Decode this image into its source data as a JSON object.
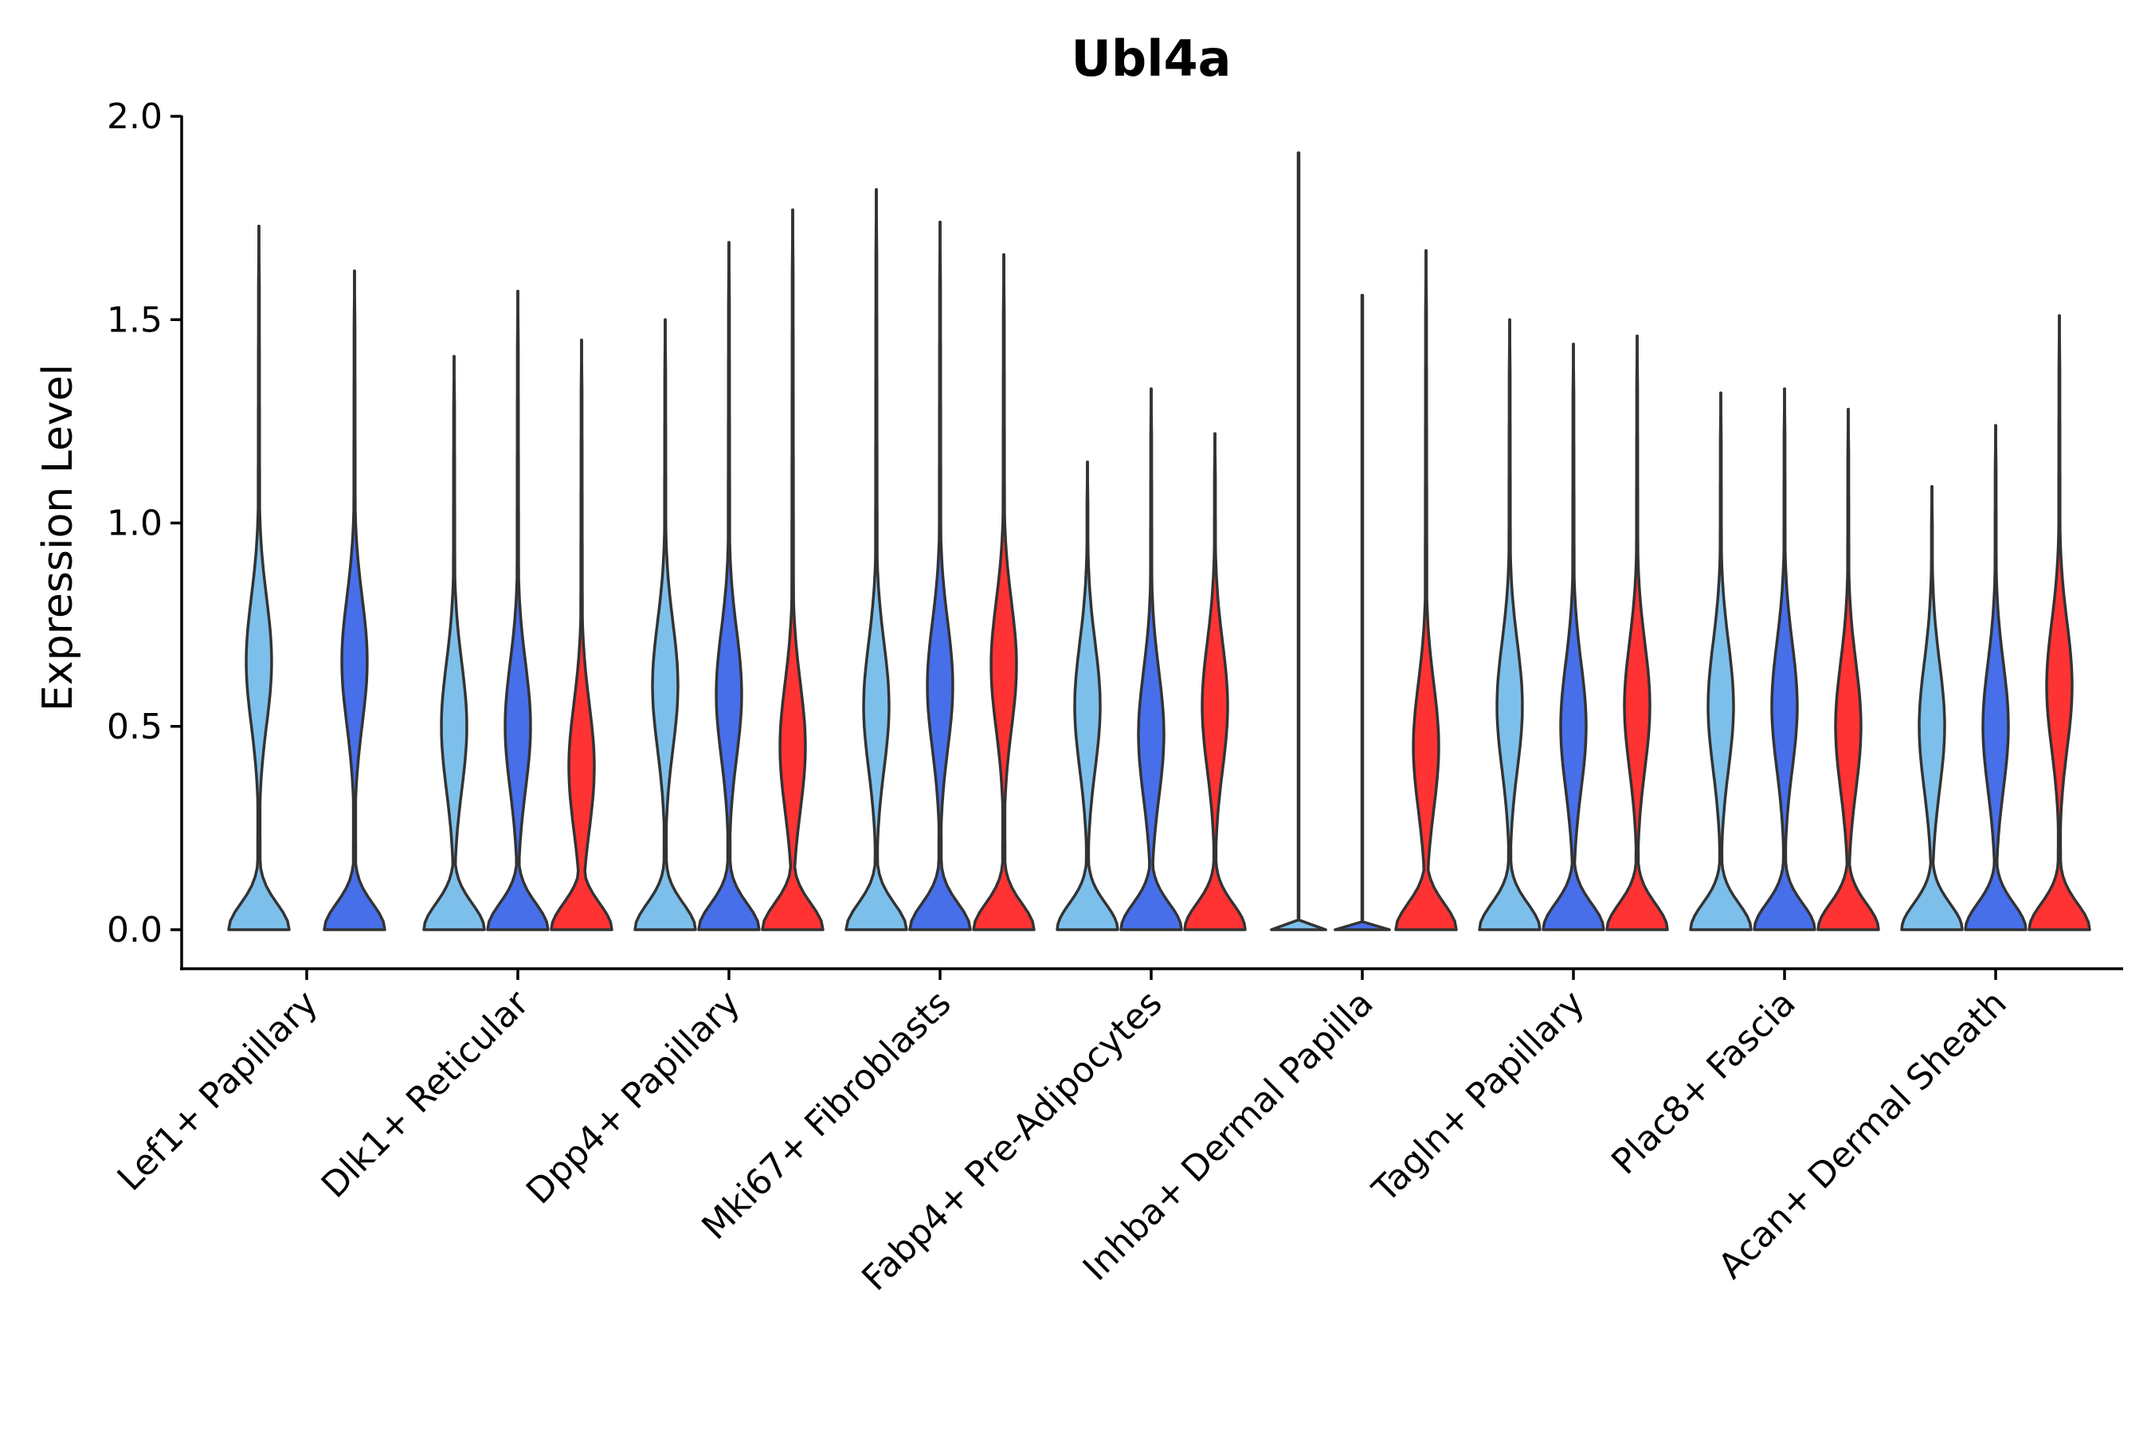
{
  "chart_data": {
    "type": "violin",
    "title": "Ubl4a",
    "ylabel": "Expression Level",
    "xlabel": "",
    "ylim": [
      -0.1,
      2.0
    ],
    "yticks": [
      "0.0",
      "0.5",
      "1.0",
      "1.5",
      "2.0"
    ],
    "ytick_values": [
      0.0,
      0.5,
      1.0,
      1.5,
      2.0
    ],
    "colors": {
      "light_blue": "#7DBFEB",
      "blue": "#476FEA",
      "red": "#FF3333",
      "outline": "#333333"
    },
    "categories": [
      "Lef1+ Papillary",
      "Dlk1+ Reticular",
      "Dpp4+ Papillary",
      "Mki67+ Fibroblasts",
      "Fabp4+ Pre-Adipocytes",
      "Inhba+ Dermal Papilla",
      "Tagln+ Papillary",
      "Plac8+ Fascia",
      "Acan+ Dermal Sheath"
    ],
    "groups": [
      {
        "category": "Lef1+ Papillary",
        "violins": [
          {
            "color": "light_blue",
            "max": 1.73,
            "mode": 0.66
          },
          {
            "color": "blue",
            "max": 1.62,
            "mode": 0.66
          }
        ]
      },
      {
        "category": "Dlk1+ Reticular",
        "violins": [
          {
            "color": "light_blue",
            "max": 1.41,
            "mode": 0.5
          },
          {
            "color": "blue",
            "max": 1.57,
            "mode": 0.5
          },
          {
            "color": "red",
            "max": 1.45,
            "mode": 0.4
          }
        ]
      },
      {
        "category": "Dpp4+ Papillary",
        "violins": [
          {
            "color": "light_blue",
            "max": 1.5,
            "mode": 0.6
          },
          {
            "color": "blue",
            "max": 1.69,
            "mode": 0.58
          },
          {
            "color": "red",
            "max": 1.77,
            "mode": 0.45
          }
        ]
      },
      {
        "category": "Mki67+ Fibroblasts",
        "violins": [
          {
            "color": "light_blue",
            "max": 1.82,
            "mode": 0.55
          },
          {
            "color": "blue",
            "max": 1.74,
            "mode": 0.6
          },
          {
            "color": "red",
            "max": 1.66,
            "mode": 0.65
          }
        ]
      },
      {
        "category": "Fabp4+ Pre-Adipocytes",
        "violins": [
          {
            "color": "light_blue",
            "max": 1.15,
            "mode": 0.55
          },
          {
            "color": "blue",
            "max": 1.33,
            "mode": 0.48
          },
          {
            "color": "red",
            "max": 1.22,
            "mode": 0.55
          }
        ]
      },
      {
        "category": "Inhba+ Dermal Papilla",
        "violins": [
          {
            "color": "light_blue",
            "max": 1.91,
            "mode": 0.0
          },
          {
            "color": "blue",
            "max": 1.56,
            "mode": 0.0
          },
          {
            "color": "red",
            "max": 1.67,
            "mode": 0.45
          }
        ]
      },
      {
        "category": "Tagln+ Papillary",
        "violins": [
          {
            "color": "light_blue",
            "max": 1.5,
            "mode": 0.55
          },
          {
            "color": "blue",
            "max": 1.44,
            "mode": 0.5
          },
          {
            "color": "red",
            "max": 1.46,
            "mode": 0.55
          }
        ]
      },
      {
        "category": "Plac8+ Fascia",
        "violins": [
          {
            "color": "light_blue",
            "max": 1.32,
            "mode": 0.55
          },
          {
            "color": "blue",
            "max": 1.33,
            "mode": 0.55
          },
          {
            "color": "red",
            "max": 1.28,
            "mode": 0.5
          }
        ]
      },
      {
        "category": "Acan+ Dermal Sheath",
        "violins": [
          {
            "color": "light_blue",
            "max": 1.09,
            "mode": 0.5
          },
          {
            "color": "blue",
            "max": 1.24,
            "mode": 0.5
          },
          {
            "color": "red",
            "max": 1.51,
            "mode": 0.6
          }
        ]
      }
    ]
  }
}
